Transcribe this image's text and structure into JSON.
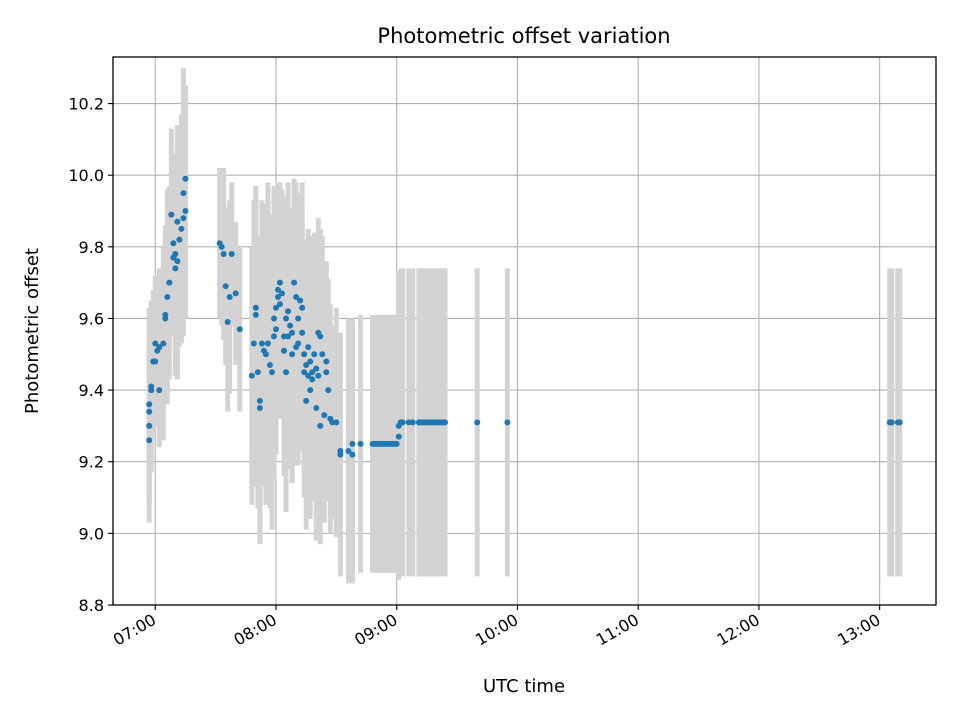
{
  "chart_data": {
    "type": "scatter",
    "title": "Photometric offset variation",
    "xlabel": "UTC time",
    "ylabel": "Photometric offset",
    "xlim": [
      "06:39",
      "13:28"
    ],
    "ylim": [
      8.8,
      10.33
    ],
    "grid": true,
    "x_ticks": [
      "07:00",
      "08:00",
      "09:00",
      "10:00",
      "11:00",
      "12:00",
      "13:00"
    ],
    "y_ticks": [
      "8.8",
      "9.0",
      "9.2",
      "9.4",
      "9.6",
      "9.8",
      "10.0",
      "10.2"
    ],
    "colors": {
      "points": "#1f77b4",
      "errorbars": "#d3d3d3",
      "grid": "#b0b0b0"
    },
    "series": [
      {
        "points": [
          [
            "06:57",
            9.26,
            0.23
          ],
          [
            "06:57",
            9.3,
            0.22
          ],
          [
            "06:57",
            9.34,
            0.25
          ],
          [
            "06:57",
            9.36,
            0.27
          ],
          [
            "06:58",
            9.41,
            0.24
          ],
          [
            "06:58",
            9.4,
            0.21
          ],
          [
            "06:59",
            9.48,
            0.2
          ],
          [
            "07:00",
            9.53,
            0.19
          ],
          [
            "07:00",
            9.48,
            0.18
          ],
          [
            "07:01",
            9.51,
            0.17
          ],
          [
            "07:02",
            9.4,
            0.16
          ],
          [
            "07:02",
            9.52,
            0.22
          ],
          [
            "07:04",
            9.53,
            0.27
          ],
          [
            "07:05",
            9.6,
            0.23
          ],
          [
            "07:05",
            9.61,
            0.25
          ],
          [
            "07:06",
            9.66,
            0.3
          ],
          [
            "07:07",
            9.7,
            0.27
          ],
          [
            "07:08",
            9.89,
            0.24
          ],
          [
            "07:09",
            9.77,
            0.22
          ],
          [
            "07:09",
            9.81,
            0.24
          ],
          [
            "07:10",
            9.78,
            0.28
          ],
          [
            "07:10",
            9.74,
            0.3
          ],
          [
            "07:11",
            9.76,
            0.33
          ],
          [
            "07:11",
            9.87,
            0.27
          ],
          [
            "07:12",
            9.82,
            0.3
          ],
          [
            "07:13",
            9.85,
            0.32
          ],
          [
            "07:14",
            9.88,
            0.33
          ],
          [
            "07:14",
            9.95,
            0.35
          ],
          [
            "07:15",
            9.9,
            0.3
          ],
          [
            "07:15",
            9.99,
            0.26
          ],
          [
            "07:32",
            9.81,
            0.21
          ],
          [
            "07:33",
            9.8,
            0.22
          ],
          [
            "07:34",
            9.78,
            0.24
          ],
          [
            "07:35",
            9.69,
            0.22
          ],
          [
            "07:36",
            9.59,
            0.25
          ],
          [
            "07:37",
            9.66,
            0.27
          ],
          [
            "07:38",
            9.78,
            0.2
          ],
          [
            "07:40",
            9.67,
            0.2
          ],
          [
            "07:42",
            9.57,
            0.23
          ],
          [
            "07:48",
            9.44,
            0.36
          ],
          [
            "07:49",
            9.53,
            0.4
          ],
          [
            "07:50",
            9.61,
            0.36
          ],
          [
            "07:50",
            9.63,
            0.34
          ],
          [
            "07:51",
            9.45,
            0.38
          ],
          [
            "07:52",
            9.37,
            0.39
          ],
          [
            "07:52",
            9.35,
            0.38
          ],
          [
            "07:53",
            9.53,
            0.4
          ],
          [
            "07:54",
            9.51,
            0.37
          ],
          [
            "07:55",
            9.5,
            0.42
          ],
          [
            "07:56",
            9.53,
            0.45
          ],
          [
            "07:57",
            9.47,
            0.4
          ],
          [
            "07:58",
            9.45,
            0.44
          ],
          [
            "07:59",
            9.6,
            0.37
          ],
          [
            "07:59",
            9.55,
            0.4
          ],
          [
            "08:00",
            9.57,
            0.35
          ],
          [
            "08:00",
            9.63,
            0.33
          ],
          [
            "08:01",
            9.66,
            0.31
          ],
          [
            "08:01",
            9.68,
            0.3
          ],
          [
            "08:02",
            9.7,
            0.28
          ],
          [
            "08:02",
            9.64,
            0.32
          ],
          [
            "08:03",
            9.67,
            0.29
          ],
          [
            "08:04",
            9.51,
            0.35
          ],
          [
            "08:04",
            9.55,
            0.38
          ],
          [
            "08:05",
            9.6,
            0.34
          ],
          [
            "08:05",
            9.45,
            0.39
          ],
          [
            "08:06",
            9.55,
            0.37
          ],
          [
            "08:06",
            9.62,
            0.36
          ],
          [
            "08:07",
            9.58,
            0.33
          ],
          [
            "08:08",
            9.56,
            0.34
          ],
          [
            "08:08",
            9.5,
            0.36
          ],
          [
            "08:09",
            9.7,
            0.29
          ],
          [
            "08:10",
            9.66,
            0.32
          ],
          [
            "08:10",
            9.52,
            0.33
          ],
          [
            "08:11",
            9.6,
            0.3
          ],
          [
            "08:11",
            9.53,
            0.34
          ],
          [
            "08:12",
            9.65,
            0.3
          ],
          [
            "08:13",
            9.63,
            0.35
          ],
          [
            "08:13",
            9.56,
            0.33
          ],
          [
            "08:14",
            9.5,
            0.32
          ],
          [
            "08:14",
            9.45,
            0.35
          ],
          [
            "08:15",
            9.37,
            0.36
          ],
          [
            "08:15",
            9.47,
            0.34
          ],
          [
            "08:16",
            9.52,
            0.33
          ],
          [
            "08:16",
            9.44,
            0.37
          ],
          [
            "08:17",
            9.4,
            0.36
          ],
          [
            "08:17",
            9.48,
            0.35
          ],
          [
            "08:18",
            9.43,
            0.34
          ],
          [
            "08:18",
            9.45,
            0.32
          ],
          [
            "08:19",
            9.5,
            0.34
          ],
          [
            "08:20",
            9.46,
            0.33
          ],
          [
            "08:20",
            9.35,
            0.37
          ],
          [
            "08:21",
            9.44,
            0.35
          ],
          [
            "08:21",
            9.56,
            0.32
          ],
          [
            "08:22",
            9.55,
            0.3
          ],
          [
            "08:22",
            9.3,
            0.33
          ],
          [
            "08:23",
            9.5,
            0.33
          ],
          [
            "08:24",
            9.33,
            0.3
          ],
          [
            "08:25",
            9.48,
            0.28
          ],
          [
            "08:25",
            9.45,
            0.3
          ],
          [
            "08:26",
            9.4,
            0.31
          ],
          [
            "08:27",
            9.32,
            0.32
          ],
          [
            "08:28",
            9.31,
            0.27
          ],
          [
            "08:30",
            9.31,
            0.32
          ],
          [
            "08:32",
            9.23,
            0.33
          ],
          [
            "08:32",
            9.22,
            0.34
          ],
          [
            "08:36",
            9.23,
            0.37
          ],
          [
            "08:38",
            9.22,
            0.36
          ],
          [
            "08:38",
            9.25,
            0.35
          ],
          [
            "08:42",
            9.25,
            0.36
          ],
          [
            "08:48",
            9.25,
            0.36
          ],
          [
            "08:49",
            9.25,
            0.36
          ],
          [
            "08:50",
            9.25,
            0.36
          ],
          [
            "08:51",
            9.25,
            0.36
          ],
          [
            "08:52",
            9.25,
            0.36
          ],
          [
            "08:53",
            9.25,
            0.36
          ],
          [
            "08:54",
            9.25,
            0.36
          ],
          [
            "08:55",
            9.25,
            0.36
          ],
          [
            "08:56",
            9.25,
            0.36
          ],
          [
            "08:57",
            9.25,
            0.36
          ],
          [
            "08:58",
            9.25,
            0.36
          ],
          [
            "08:59",
            9.25,
            0.36
          ],
          [
            "09:00",
            9.25,
            0.36
          ],
          [
            "09:01",
            9.27,
            0.36
          ],
          [
            "09:01",
            9.3,
            0.43
          ],
          [
            "09:02",
            9.31,
            0.43
          ],
          [
            "09:03",
            9.31,
            0.43
          ],
          [
            "09:06",
            9.31,
            0.43
          ],
          [
            "09:08",
            9.31,
            0.43
          ],
          [
            "09:11",
            9.31,
            0.43
          ],
          [
            "09:12",
            9.31,
            0.43
          ],
          [
            "09:13",
            9.31,
            0.43
          ],
          [
            "09:14",
            9.31,
            0.43
          ],
          [
            "09:15",
            9.31,
            0.43
          ],
          [
            "09:16",
            9.31,
            0.43
          ],
          [
            "09:17",
            9.31,
            0.43
          ],
          [
            "09:18",
            9.31,
            0.43
          ],
          [
            "09:19",
            9.31,
            0.43
          ],
          [
            "09:20",
            9.31,
            0.43
          ],
          [
            "09:21",
            9.31,
            0.43
          ],
          [
            "09:22",
            9.31,
            0.43
          ],
          [
            "09:23",
            9.31,
            0.43
          ],
          [
            "09:24",
            9.31,
            0.43
          ],
          [
            "09:40",
            9.31,
            0.43
          ],
          [
            "09:55",
            9.31,
            0.43
          ],
          [
            "13:05",
            9.31,
            0.43
          ],
          [
            "13:06",
            9.31,
            0.43
          ],
          [
            "13:09",
            9.31,
            0.43
          ],
          [
            "13:10",
            9.31,
            0.43
          ]
        ]
      }
    ]
  }
}
